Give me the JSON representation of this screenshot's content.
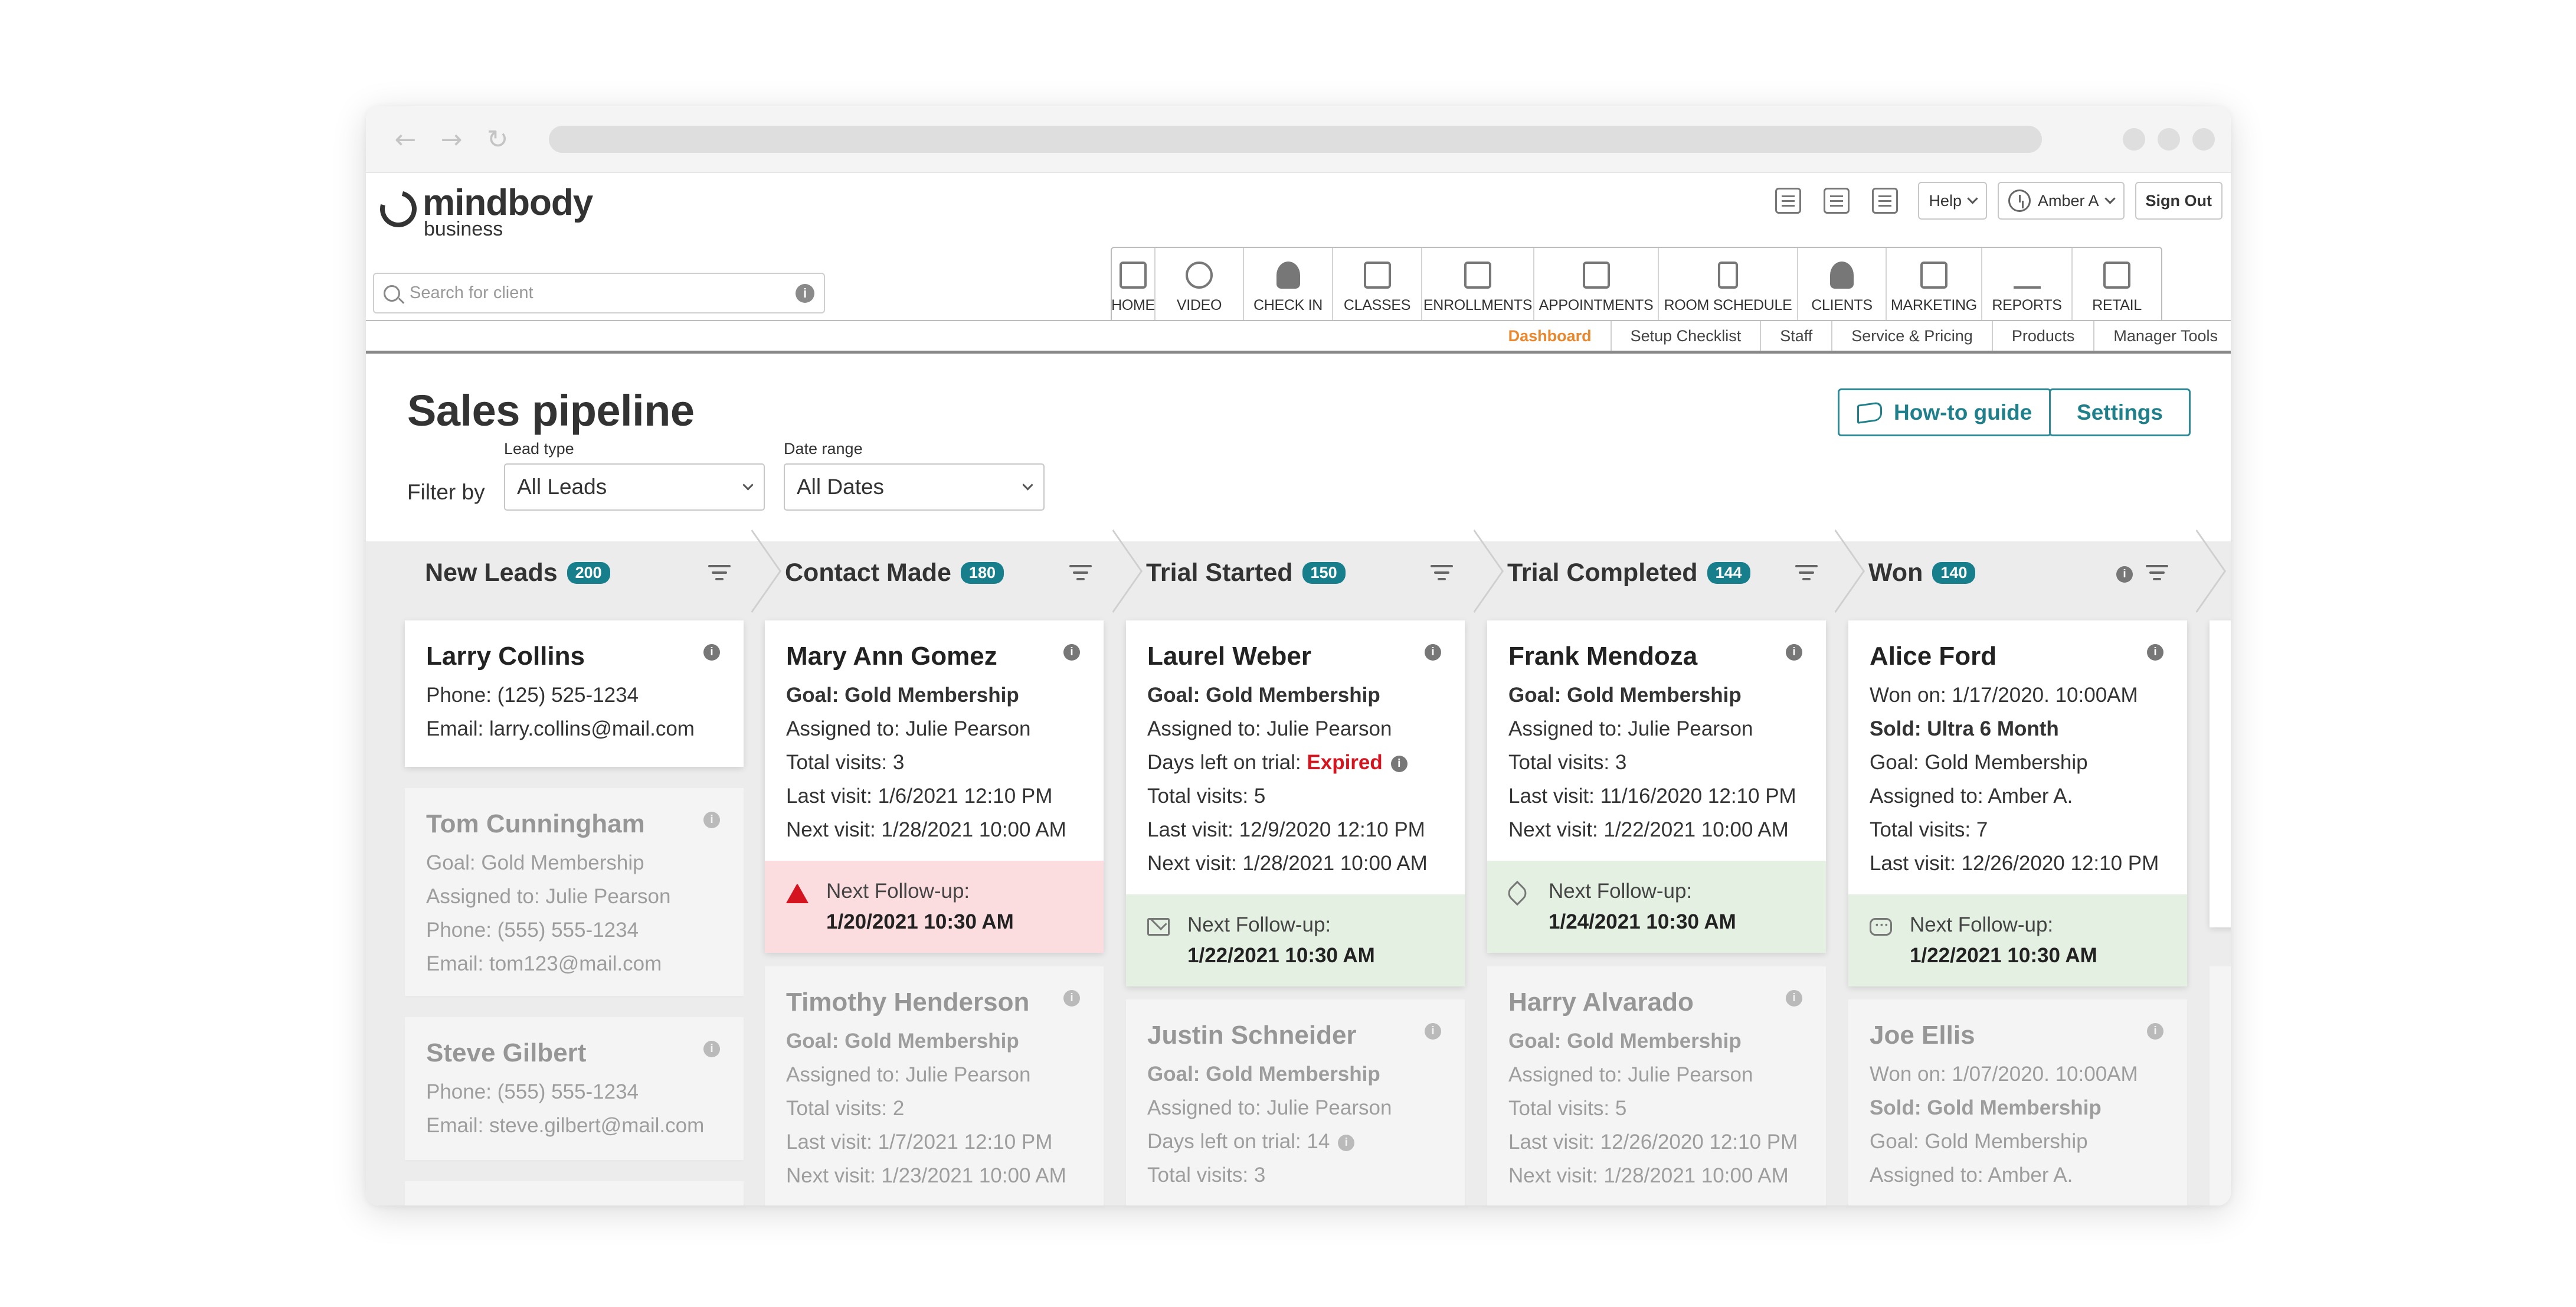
{
  "browser": {
    "back_icon": "arrow-left-icon",
    "forward_icon": "arrow-right-icon",
    "reload_icon": "reload-icon"
  },
  "brand": {
    "name": "mindbody",
    "sub": "business"
  },
  "header": {
    "help_label": "Help",
    "user_label": "Amber A",
    "signout_label": "Sign Out"
  },
  "search": {
    "placeholder": "Search for client"
  },
  "main_nav": [
    {
      "label": "HOME",
      "icon": "home-icon"
    },
    {
      "label": "VIDEO",
      "icon": "play-icon"
    },
    {
      "label": "CHECK IN",
      "icon": "check-in-icon"
    },
    {
      "label": "CLASSES",
      "icon": "classes-icon"
    },
    {
      "label": "ENROLLMENTS",
      "icon": "enrollments-icon"
    },
    {
      "label": "APPOINTMENTS",
      "icon": "calendar-icon"
    },
    {
      "label": "ROOM SCHEDULE",
      "icon": "door-icon"
    },
    {
      "label": "CLIENTS",
      "icon": "person-icon"
    },
    {
      "label": "MARKETING",
      "icon": "megaphone-icon"
    },
    {
      "label": "REPORTS",
      "icon": "bar-chart-icon"
    },
    {
      "label": "RETAIL",
      "icon": "register-icon"
    }
  ],
  "sub_nav": [
    "Dashboard",
    "Setup Checklist",
    "Staff",
    "Service & Pricing",
    "Products",
    "Manager Tools"
  ],
  "page": {
    "title": "Sales pipeline",
    "howto_label": "How-to guide",
    "settings_label": "Settings",
    "filter_by": "Filter by",
    "lead_type_label": "Lead type",
    "lead_type_value": "All Leads",
    "date_range_label": "Date range",
    "date_range_value": "All Dates"
  },
  "columns": [
    {
      "title": "New Leads",
      "count": "200"
    },
    {
      "title": "Contact Made",
      "count": "180"
    },
    {
      "title": "Trial Started",
      "count": "150"
    },
    {
      "title": "Trial Completed",
      "count": "144"
    },
    {
      "title": "Won",
      "count": "140"
    }
  ],
  "cards": {
    "c0a": {
      "name": "Larry Collins",
      "l1": "Phone: (125) 525-1234",
      "l2": "Email: larry.collins@mail.com"
    },
    "c0b": {
      "name": "Tom Cunningham",
      "l1": "Goal: Gold Membership",
      "l2": "Assigned to: Julie Pearson",
      "l3": "Phone: (555) 555-1234",
      "l4": "Email: tom123@mail.com"
    },
    "c0c": {
      "name": "Steve Gilbert",
      "l1": "Phone: (555) 555-1234",
      "l2": "Email: steve.gilbert@mail.com"
    },
    "c1a": {
      "name": "Mary Ann Gomez",
      "l1": "Goal: Gold Membership",
      "l2": "Assigned to: Julie Pearson",
      "l3": "Total visits: 3",
      "l4": "Last visit: 1/6/2021 12:10 PM",
      "l5": "Next visit: 1/28/2021 10:00 AM",
      "fl": "Next Follow-up:",
      "fv": "1/20/2021  10:30 AM"
    },
    "c1b": {
      "name": "Timothy Henderson",
      "l1": "Goal: Gold Membership",
      "l2": "Assigned to: Julie Pearson",
      "l3": "Total visits: 2",
      "l4": "Last visit: 1/7/2021 12:10 PM",
      "l5": "Next visit: 1/23/2021 10:00 AM"
    },
    "c2a": {
      "name": "Laurel Weber",
      "l1": "Goal: Gold Membership",
      "l2": "Assigned to: Julie Pearson",
      "l3a": "Days left on trial:",
      "l3b": "Expired",
      "l4": "Total visits: 5",
      "l5": "Last visit: 12/9/2020 12:10 PM",
      "l6": "Next visit: 1/28/2021 10:00 AM",
      "fl": "Next Follow-up:",
      "fv": "1/22/2021  10:30 AM"
    },
    "c2b": {
      "name": "Justin Schneider",
      "l1": "Goal: Gold Membership",
      "l2": "Assigned to: Julie Pearson",
      "l3": "Days left on trial: 14",
      "l4": "Total visits: 3"
    },
    "c3a": {
      "name": "Frank Mendoza",
      "l1": "Goal: Gold Membership",
      "l2": "Assigned to: Julie Pearson",
      "l3": "Total visits: 3",
      "l4": "Last visit: 11/16/2020 12:10 PM",
      "l5": "Next visit: 1/22/2021 10:00 AM",
      "fl": "Next Follow-up:",
      "fv": "1/24/2021  10:30 AM"
    },
    "c3b": {
      "name": "Harry Alvarado",
      "l1": "Goal: Gold Membership",
      "l2": "Assigned to: Julie Pearson",
      "l3": "Total visits: 5",
      "l4": "Last visit: 12/26/2020 12:10 PM",
      "l5": "Next visit: 1/28/2021 10:00 AM"
    },
    "c4a": {
      "name": "Alice Ford",
      "l1": "Won on: 1/17/2020. 10:00AM",
      "l2": "Sold: Ultra 6 Month",
      "l3": "Goal: Gold Membership",
      "l4": "Assigned to: Amber A.",
      "l5": "Total visits: 7",
      "l6": "Last visit: 12/26/2020 12:10 PM",
      "fl": "Next Follow-up:",
      "fv": "1/22/2021  10:30 AM"
    },
    "c4b": {
      "name": "Joe Ellis",
      "l1": "Won on: 1/07/2020. 10:00AM",
      "l2": "Sold: Gold Membership",
      "l3": "Goal: Gold Membership",
      "l4": "Assigned to: Amber A."
    }
  },
  "colors": {
    "accent": "#177f8c",
    "active_tab": "#e8872e",
    "alert": "#d4141e",
    "followup_red": "#fbdde0",
    "followup_green": "#e4f0e1"
  }
}
